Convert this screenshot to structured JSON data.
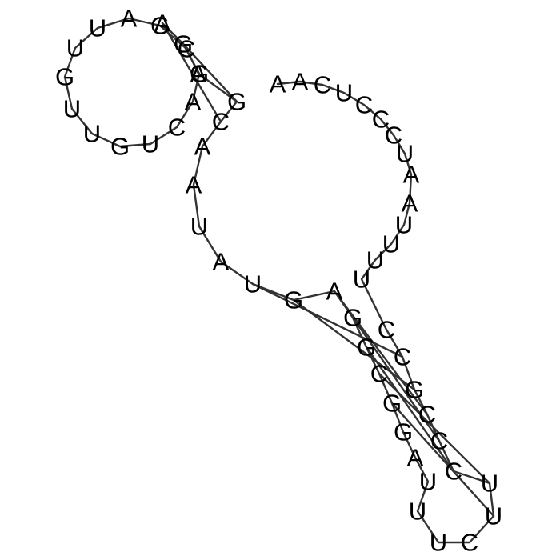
{
  "sequence": [
    "A",
    "A",
    "C",
    "U",
    "C",
    "C",
    "C",
    "U",
    "A",
    "A",
    "U",
    "U",
    "U",
    "U",
    "C",
    "C",
    "G",
    "C",
    "C",
    "C",
    "U",
    "U",
    "C",
    "U",
    "U",
    "U",
    "A",
    "G",
    "G",
    "C",
    "G",
    "G",
    "A",
    "G",
    "U",
    "A",
    "U",
    "A",
    "A",
    "C",
    "G",
    "A",
    "C",
    "G",
    "A",
    "U",
    "U",
    "G",
    "U",
    "U",
    "G",
    "U",
    "C",
    "A",
    "G",
    "G",
    "A"
  ],
  "pairs": [
    [
      15,
      34
    ],
    [
      16,
      33
    ],
    [
      17,
      32
    ],
    [
      18,
      31
    ],
    [
      19,
      30
    ],
    [
      20,
      29
    ],
    [
      21,
      28
    ],
    [
      39,
      56
    ],
    [
      40,
      55
    ]
  ],
  "colors": {
    "line": "#333333",
    "text": "#000000",
    "background": "#ffffff"
  }
}
